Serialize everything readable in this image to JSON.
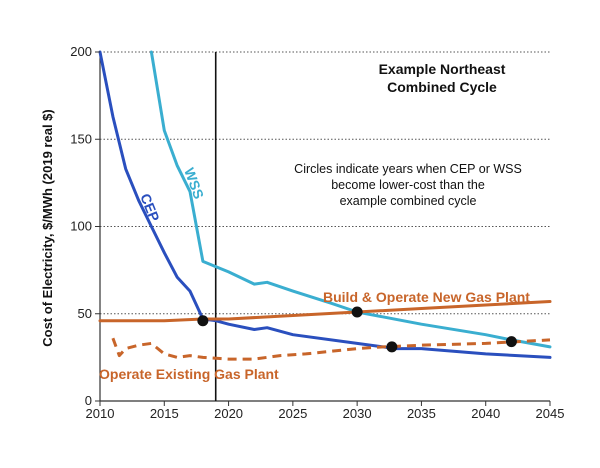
{
  "chart_data": {
    "type": "line",
    "title": [
      "Example Northeast",
      "Combined Cycle"
    ],
    "annotation": [
      "Circles indicate years when CEP or WSS",
      "become lower-cost than the",
      "example combined cycle"
    ],
    "ylabel": "Cost of Electricity, $/MWh (2019 real $)",
    "xlabel": "",
    "xlim": [
      2010,
      2045
    ],
    "ylim": [
      0,
      200
    ],
    "xticks": [
      2010,
      2015,
      2020,
      2025,
      2030,
      2035,
      2040,
      2045
    ],
    "yticks": [
      0,
      50,
      100,
      150,
      200
    ],
    "grid": "dotted horizontal",
    "vertical_marker_x": 2019,
    "series": [
      {
        "name": "CEP",
        "color": "#2a4fbe",
        "style": "solid",
        "x": [
          2010,
          2011,
          2012,
          2013,
          2014,
          2015,
          2016,
          2017,
          2018,
          2019,
          2020,
          2022,
          2023,
          2025,
          2030,
          2033,
          2035,
          2040,
          2045
        ],
        "y": [
          200,
          163,
          133,
          115,
          100,
          85,
          71,
          63,
          47,
          46,
          44,
          41,
          42,
          38,
          33,
          30,
          30,
          27,
          25
        ]
      },
      {
        "name": "WSS",
        "color": "#3aaed0",
        "style": "solid",
        "x": [
          2014,
          2015,
          2016,
          2017,
          2018,
          2019,
          2020,
          2022,
          2023,
          2025,
          2028,
          2030,
          2035,
          2040,
          2042,
          2045
        ],
        "y": [
          200,
          155,
          135,
          120,
          80,
          77,
          74,
          67,
          68,
          63,
          56,
          51,
          44,
          38,
          35,
          31
        ]
      },
      {
        "name": "Build & Operate New Gas Plant",
        "color": "#c8652a",
        "style": "solid",
        "x": [
          2010,
          2015,
          2018,
          2020,
          2025,
          2030,
          2035,
          2040,
          2045
        ],
        "y": [
          46,
          46,
          47,
          47,
          49,
          51,
          53,
          55,
          57
        ]
      },
      {
        "name": "Operate Existing Gas Plant",
        "color": "#c8652a",
        "style": "dashed",
        "x": [
          2011,
          2011.5,
          2012,
          2013,
          2014,
          2015,
          2016,
          2017,
          2018,
          2020,
          2022,
          2024,
          2026,
          2030,
          2032,
          2035,
          2040,
          2045
        ],
        "y": [
          36,
          26,
          30,
          32,
          33,
          27,
          25,
          26,
          25,
          24,
          24,
          26,
          27,
          30,
          31,
          32,
          33,
          35
        ]
      }
    ],
    "crossover_points": [
      {
        "x": 2018,
        "y": 46
      },
      {
        "x": 2030,
        "y": 51
      },
      {
        "x": 2032.7,
        "y": 31
      },
      {
        "x": 2042,
        "y": 34
      }
    ],
    "series_labels": [
      {
        "text": "CEP",
        "color": "#2a4fbe"
      },
      {
        "text": "WSS",
        "color": "#3aaed0"
      },
      {
        "text": "Build & Operate New Gas Plant",
        "color": "#c8652a"
      },
      {
        "text": "Operate Existing Gas Plant",
        "color": "#c8652a"
      }
    ]
  }
}
